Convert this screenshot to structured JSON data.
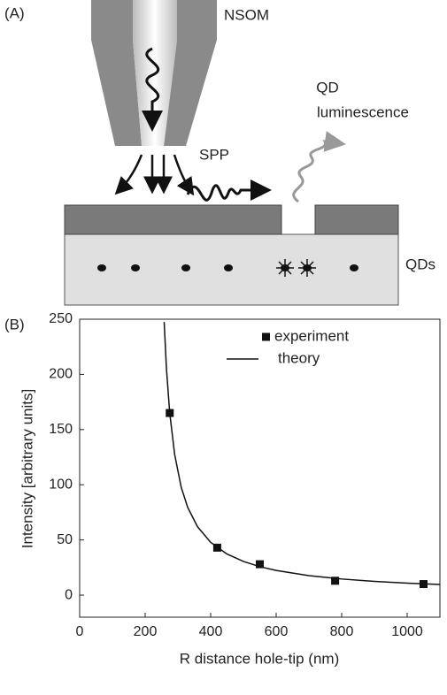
{
  "panel_a": {
    "label": "(A)",
    "tip_label": "NSOM",
    "emission_label_1": "QD",
    "emission_label_2": "luminescence",
    "plasmon_label": "SPP",
    "dots_label": "QDs"
  },
  "chart_data": {
    "type": "scatter",
    "panel_label": "(B)",
    "x_label": "R   distance hole-tip (nm)",
    "y_label": "Intensity [arbitrary units]",
    "xlim": [
      0,
      1100
    ],
    "ylim": [
      -20,
      250
    ],
    "xticks": [
      0,
      200,
      400,
      600,
      800,
      1000
    ],
    "yticks": [
      0,
      50,
      100,
      150,
      200,
      250
    ],
    "series": [
      {
        "name": "experiment",
        "type": "scatter",
        "color": "#111111",
        "x": [
          275,
          420,
          550,
          780,
          1050
        ],
        "values": [
          165,
          43,
          28,
          13,
          10
        ]
      },
      {
        "name": "theory",
        "type": "line",
        "color": "#111111",
        "x": [
          258,
          265,
          275,
          290,
          310,
          330,
          360,
          400,
          450,
          500,
          550,
          600,
          700,
          800,
          900,
          1000,
          1100
        ],
        "values": [
          247.5,
          205.2,
          165,
          127.5,
          97.8,
          79.4,
          61.9,
          47.8,
          37.2,
          30.5,
          25.8,
          22.4,
          17.7,
          14.6,
          12.4,
          10.8,
          9.6
        ]
      }
    ]
  }
}
